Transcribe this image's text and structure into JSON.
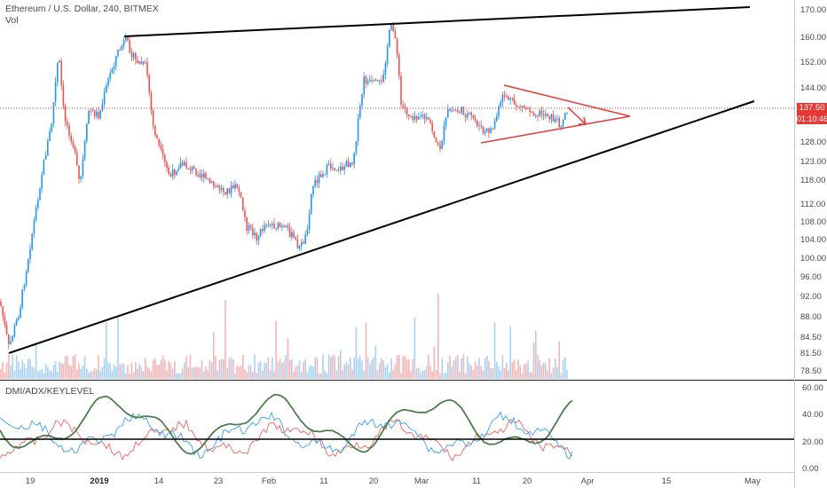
{
  "header": {
    "symbol_title": "Ethereum / U.S. Dollar, 240, BITMEX",
    "volume_label": "Vol"
  },
  "indicator": {
    "title": "DMI/ADX/KEYLEVEL",
    "key_level": 23,
    "axis_labels": [
      "60.00",
      "40.00",
      "20.00",
      "0.00"
    ]
  },
  "price_axis": {
    "labels": [
      "170.00",
      "160.00",
      "152.00",
      "144.00",
      "137.50",
      "128.00",
      "123.00",
      "118.00",
      "112.00",
      "108.00",
      "104.00",
      "100.00",
      "96.00",
      "92.00",
      "88.00",
      "84.50",
      "81.50",
      "78.50"
    ],
    "current_price": "137.50",
    "countdown": "01:10:46"
  },
  "time_axis": {
    "labels": [
      "19",
      "2019",
      "14",
      "23",
      "Feb",
      "11",
      "20",
      "Mar",
      "11",
      "20",
      "Apr",
      "15",
      "May"
    ],
    "bold": [
      "2019"
    ]
  },
  "colors": {
    "up": "#2196f3",
    "down": "#ef5350",
    "price_line": "#e53935",
    "trendline": "#000000",
    "triangle": "#e53935",
    "adx": "#4e7d4e"
  }
}
